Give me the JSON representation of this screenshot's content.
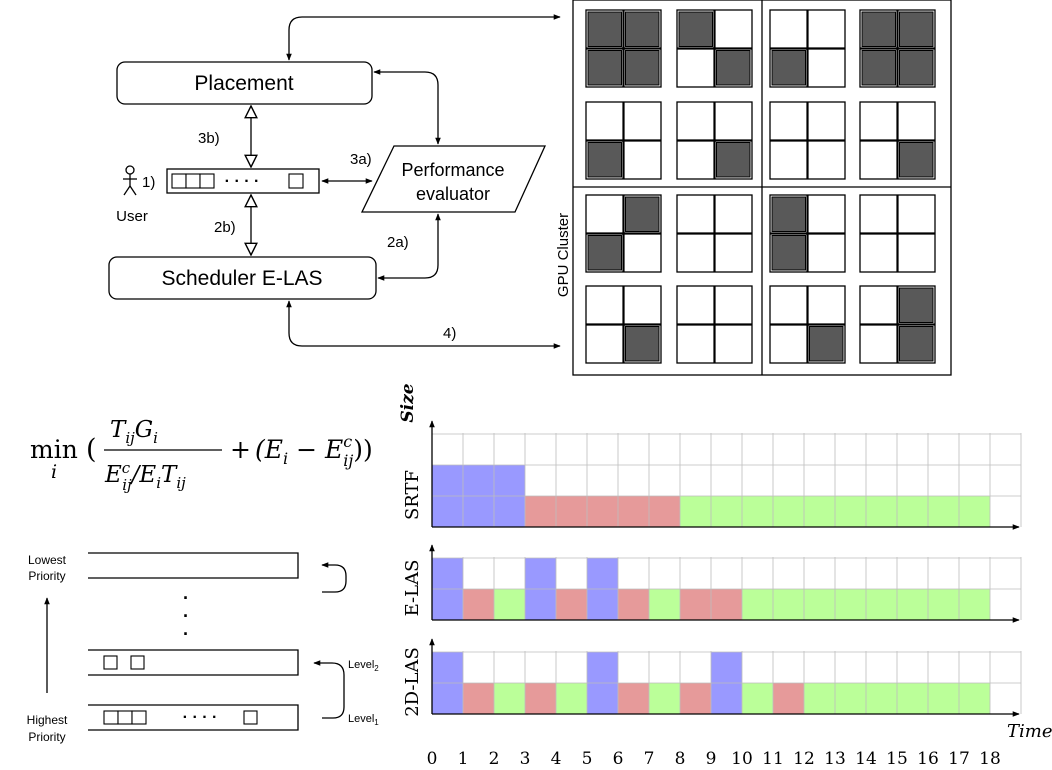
{
  "placement": {
    "label": "Placement"
  },
  "scheduler": {
    "label": "Scheduler E-LAS"
  },
  "evaluator": {
    "line1": "Performance",
    "line2": "evaluator"
  },
  "user": {
    "label": "User",
    "step": "1)",
    "dots": "· · · ·"
  },
  "steps": {
    "s3b": "3b)",
    "s3a": "3a)",
    "s2b": "2b)",
    "s2a": "2a)",
    "s4": "4)"
  },
  "cluster": {
    "label": "GPU Cluster",
    "occupied_color": "#595959",
    "nodes": [
      [
        [
          true,
          true,
          true,
          true
        ],
        [
          true,
          false,
          false,
          true
        ],
        [
          false,
          false,
          true,
          false
        ],
        [
          true,
          true,
          true,
          true
        ]
      ],
      [
        [
          false,
          false,
          true,
          false
        ],
        [
          false,
          false,
          false,
          true
        ],
        [
          false,
          false,
          false,
          false
        ],
        [
          false,
          false,
          false,
          true
        ]
      ],
      [
        [
          false,
          true,
          true,
          false
        ],
        [
          false,
          false,
          false,
          false
        ],
        [
          true,
          false,
          true,
          false
        ],
        [
          false,
          false,
          false,
          false
        ]
      ],
      [
        [
          false,
          false,
          false,
          true
        ],
        [
          false,
          false,
          false,
          false
        ],
        [
          false,
          false,
          false,
          true
        ],
        [
          false,
          true,
          false,
          true
        ]
      ]
    ]
  },
  "formula": {
    "op": "min",
    "sub_i": "i",
    "lparen": "(",
    "rparen": "))",
    "num": "TijGi",
    "den": "Ecij/EiTij",
    "plus": "+",
    "term": "(Ei − Ecij"
  },
  "priority": {
    "lowest": [
      "Lowest",
      "Priority"
    ],
    "highest": [
      "Highest",
      "Priority"
    ],
    "vdots": "·",
    "queue_dots": "· · · ·",
    "level2": "Level",
    "level2_sub": "2",
    "level1": "Level",
    "level1_sub": "1"
  },
  "chart_data": {
    "type": "gantt",
    "title": "",
    "xlabel": "Time",
    "ylabel": "Size",
    "x_ticks": [
      "0",
      "1",
      "2",
      "3",
      "4",
      "5",
      "6",
      "7",
      "8",
      "9",
      "10",
      "11",
      "12",
      "13",
      "14",
      "15",
      "16",
      "17",
      "18"
    ],
    "xlim": [
      0,
      18
    ],
    "grid": true,
    "job_colors": {
      "blue": "#9999ff",
      "red": "#e69a9a",
      "green": "#bbff99"
    },
    "rows": [
      {
        "name": "SRTF",
        "segments": [
          {
            "job": "blue",
            "start": 0,
            "end": 3,
            "size": 2
          },
          {
            "job": "red",
            "start": 3,
            "end": 8,
            "size": 1
          },
          {
            "job": "green",
            "start": 8,
            "end": 18,
            "size": 1
          }
        ]
      },
      {
        "name": "E-LAS",
        "segments": [
          {
            "job": "blue",
            "start": 0,
            "end": 1,
            "size": 2
          },
          {
            "job": "red",
            "start": 1,
            "end": 2,
            "size": 1
          },
          {
            "job": "green",
            "start": 2,
            "end": 3,
            "size": 1
          },
          {
            "job": "blue",
            "start": 3,
            "end": 4,
            "size": 2
          },
          {
            "job": "red",
            "start": 4,
            "end": 5,
            "size": 1
          },
          {
            "job": "blue",
            "start": 5,
            "end": 6,
            "size": 2
          },
          {
            "job": "red",
            "start": 6,
            "end": 7,
            "size": 1
          },
          {
            "job": "green",
            "start": 7,
            "end": 8,
            "size": 1
          },
          {
            "job": "red",
            "start": 8,
            "end": 10,
            "size": 1
          },
          {
            "job": "green",
            "start": 10,
            "end": 18,
            "size": 1
          }
        ]
      },
      {
        "name": "2D-LAS",
        "segments": [
          {
            "job": "blue",
            "start": 0,
            "end": 1,
            "size": 2
          },
          {
            "job": "red",
            "start": 1,
            "end": 2,
            "size": 1
          },
          {
            "job": "green",
            "start": 2,
            "end": 3,
            "size": 1
          },
          {
            "job": "red",
            "start": 3,
            "end": 4,
            "size": 1
          },
          {
            "job": "green",
            "start": 4,
            "end": 5,
            "size": 1
          },
          {
            "job": "blue",
            "start": 5,
            "end": 6,
            "size": 2
          },
          {
            "job": "red",
            "start": 6,
            "end": 7,
            "size": 1
          },
          {
            "job": "green",
            "start": 7,
            "end": 8,
            "size": 1
          },
          {
            "job": "red",
            "start": 8,
            "end": 9,
            "size": 1
          },
          {
            "job": "blue",
            "start": 9,
            "end": 10,
            "size": 2
          },
          {
            "job": "green",
            "start": 10,
            "end": 11,
            "size": 1
          },
          {
            "job": "red",
            "start": 11,
            "end": 12,
            "size": 1
          },
          {
            "job": "green",
            "start": 12,
            "end": 18,
            "size": 1
          }
        ]
      }
    ]
  }
}
